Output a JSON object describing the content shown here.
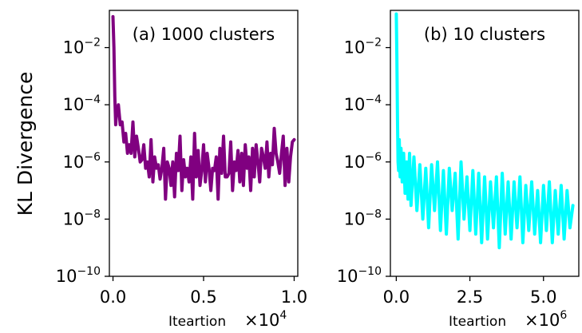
{
  "chart_data": [
    {
      "type": "line",
      "panel_title": "(a) 1000 clusters",
      "color": "#800080",
      "ylabel": "KL Divergence",
      "xlabel": "Iteartion",
      "x_offset": {
        "base": "×10",
        "exponent": "4"
      },
      "y_scale": "log",
      "ylim": [
        1e-10,
        0.2
      ],
      "xlim": [
        -0.02,
        1.02
      ],
      "x_ticks": [
        {
          "value": 0.0,
          "label": "0.0"
        },
        {
          "value": 0.5,
          "label": "0.5"
        },
        {
          "value": 1.0,
          "label": "1.0"
        }
      ],
      "y_ticks": [
        {
          "value": 0.01,
          "base": "10",
          "exponent": "−2"
        },
        {
          "value": 0.0001,
          "base": "10",
          "exponent": "−4"
        },
        {
          "value": 1e-06,
          "base": "10",
          "exponent": "−6"
        },
        {
          "value": 1e-08,
          "base": "10",
          "exponent": "−8"
        },
        {
          "value": 1e-10,
          "base": "10",
          "exponent": "−10"
        }
      ],
      "grid": false,
      "x": [
        0.0,
        0.005,
        0.01,
        0.015,
        0.02,
        0.025,
        0.03,
        0.04,
        0.05,
        0.06,
        0.07,
        0.08,
        0.09,
        0.1,
        0.11,
        0.12,
        0.13,
        0.14,
        0.15,
        0.16,
        0.17,
        0.18,
        0.19,
        0.2,
        0.21,
        0.22,
        0.23,
        0.24,
        0.25,
        0.26,
        0.27,
        0.28,
        0.29,
        0.3,
        0.31,
        0.32,
        0.33,
        0.34,
        0.35,
        0.36,
        0.37,
        0.38,
        0.39,
        0.4,
        0.41,
        0.42,
        0.43,
        0.44,
        0.45,
        0.46,
        0.47,
        0.48,
        0.49,
        0.5,
        0.51,
        0.52,
        0.53,
        0.54,
        0.55,
        0.56,
        0.57,
        0.58,
        0.59,
        0.6,
        0.61,
        0.62,
        0.63,
        0.64,
        0.65,
        0.66,
        0.67,
        0.68,
        0.69,
        0.7,
        0.71,
        0.72,
        0.73,
        0.74,
        0.75,
        0.76,
        0.77,
        0.78,
        0.79,
        0.8,
        0.81,
        0.82,
        0.83,
        0.84,
        0.85,
        0.86,
        0.87,
        0.88,
        0.89,
        0.9,
        0.91,
        0.92,
        0.93,
        0.94,
        0.95,
        0.96,
        0.97,
        0.98,
        0.99,
        1.0
      ],
      "y": [
        0.12,
        0.01,
        0.0002,
        2e-05,
        6e-05,
        5e-05,
        0.0001,
        2e-05,
        2.5e-05,
        5e-06,
        1e-05,
        2e-06,
        4e-06,
        2e-06,
        2.5e-05,
        1.5e-06,
        8e-06,
        3e-06,
        1e-06,
        1.2e-06,
        4e-06,
        6e-07,
        1e-06,
        3e-07,
        6e-06,
        2e-07,
        1.5e-06,
        6e-07,
        8e-07,
        2.5e-07,
        6e-07,
        3e-06,
        5e-08,
        1e-06,
        6e-07,
        1.5e-07,
        1e-06,
        6e-08,
        2e-06,
        5e-07,
        8e-06,
        1e-07,
        1.2e-06,
        3e-07,
        6e-07,
        2e-07,
        1.5e-06,
        5e-08,
        1e-05,
        3e-07,
        2.5e-06,
        1.5e-07,
        5e-07,
        4e-06,
        2e-07,
        2e-06,
        6e-07,
        1e-07,
        6e-07,
        5e-07,
        1.5e-06,
        5e-08,
        3e-06,
        4e-07,
        8e-06,
        3e-07,
        3e-07,
        4e-07,
        5e-06,
        1e-07,
        1e-06,
        5e-07,
        2.5e-06,
        2e-07,
        2e-06,
        1.5e-07,
        4e-06,
        6e-07,
        1.5e-06,
        1e-07,
        3e-06,
        3e-07,
        4e-06,
        1e-06,
        2e-07,
        3e-06,
        1.5e-06,
        6e-07,
        5e-06,
        3e-07,
        2e-06,
        8e-07,
        1.5e-05,
        2e-06,
        1e-06,
        4e-07,
        2e-06,
        8e-06,
        1.5e-07,
        3e-06,
        2e-07,
        1.5e-06,
        5e-06,
        6e-06
      ]
    },
    {
      "type": "line",
      "panel_title": "(b) 10 clusters",
      "color": "#00ffff",
      "xlabel": "Iteartion",
      "x_offset": {
        "base": "×10",
        "exponent": "6"
      },
      "y_scale": "log",
      "ylim": [
        1e-10,
        0.2
      ],
      "xlim": [
        -0.2,
        6.2
      ],
      "x_ticks": [
        {
          "value": 0.0,
          "label": "0.0"
        },
        {
          "value": 2.5,
          "label": "2.5"
        },
        {
          "value": 5.0,
          "label": "5.0"
        }
      ],
      "y_ticks": [
        {
          "value": 0.01,
          "base": "10",
          "exponent": "−2"
        },
        {
          "value": 0.0001,
          "base": "10",
          "exponent": "−4"
        },
        {
          "value": 1e-06,
          "base": "10",
          "exponent": "−6"
        },
        {
          "value": 1e-08,
          "base": "10",
          "exponent": "−8"
        },
        {
          "value": 1e-10,
          "base": "10",
          "exponent": "−10"
        }
      ],
      "grid": false,
      "x": [
        0.0,
        0.02,
        0.04,
        0.06,
        0.08,
        0.1,
        0.13,
        0.16,
        0.2,
        0.25,
        0.3,
        0.35,
        0.4,
        0.45,
        0.5,
        0.6,
        0.7,
        0.8,
        0.9,
        1.0,
        1.1,
        1.2,
        1.3,
        1.4,
        1.5,
        1.6,
        1.7,
        1.8,
        1.9,
        2.0,
        2.1,
        2.2,
        2.3,
        2.4,
        2.5,
        2.6,
        2.7,
        2.8,
        2.9,
        3.0,
        3.1,
        3.2,
        3.3,
        3.4,
        3.5,
        3.6,
        3.7,
        3.8,
        3.9,
        4.0,
        4.1,
        4.2,
        4.3,
        4.4,
        4.5,
        4.6,
        4.7,
        4.8,
        4.9,
        5.0,
        5.1,
        5.2,
        5.3,
        5.4,
        5.5,
        5.6,
        5.7,
        5.8,
        5.9,
        6.0
      ],
      "y": [
        0.15,
        0.005,
        3e-05,
        1e-06,
        5e-07,
        6e-06,
        3e-07,
        3e-06,
        2e-07,
        2e-06,
        8e-08,
        1e-06,
        5e-08,
        2e-06,
        3e-08,
        1.5e-06,
        2e-08,
        8e-07,
        1e-08,
        6e-07,
        5e-09,
        8e-07,
        2e-08,
        1e-06,
        4e-09,
        5e-07,
        3e-09,
        6e-07,
        2e-08,
        4e-07,
        2e-09,
        1e-06,
        1e-08,
        3e-07,
        4e-09,
        5e-07,
        3e-09,
        4e-07,
        1.5e-09,
        3e-07,
        2e-09,
        2e-07,
        5e-09,
        3e-07,
        1e-09,
        4e-07,
        3e-09,
        2e-07,
        2e-09,
        2e-07,
        5e-09,
        3e-07,
        1.5e-09,
        1.5e-07,
        4e-09,
        2e-07,
        3e-09,
        1e-07,
        1.5e-09,
        1.5e-07,
        4e-09,
        2e-07,
        1.5e-09,
        1e-07,
        3e-09,
        1.5e-07,
        2e-09,
        1e-07,
        5e-09,
        3e-08
      ]
    }
  ]
}
